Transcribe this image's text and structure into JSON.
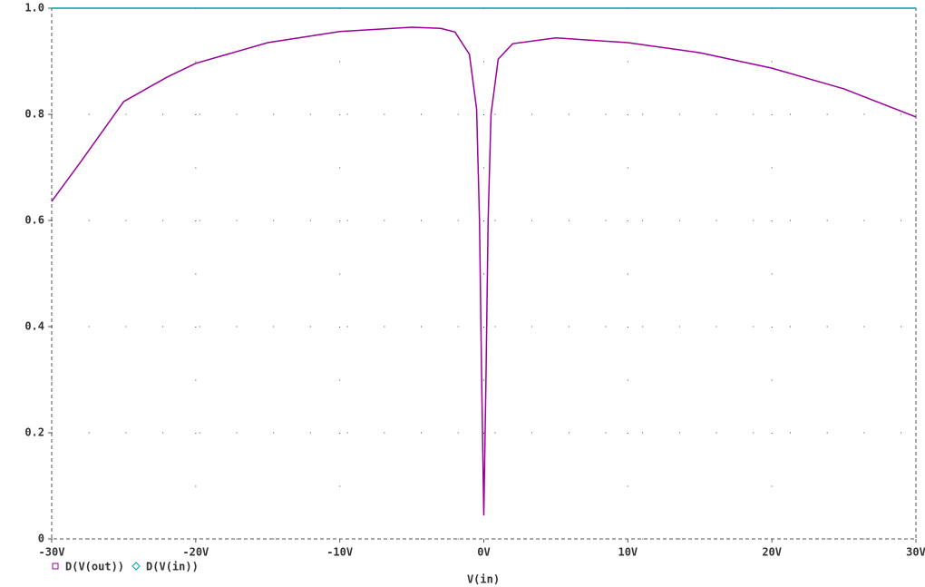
{
  "chart_data": {
    "type": "line",
    "xlabel": "V(in)",
    "series": [
      {
        "name": "D(V(out))",
        "color": "#990099",
        "marker": "square",
        "x": [
          -30,
          -28,
          -25,
          -22,
          -20,
          -15,
          -10,
          -5,
          -3,
          -2,
          -1,
          -0.5,
          -0.3,
          -0.15,
          0,
          0.15,
          0.3,
          0.5,
          1,
          2,
          5,
          10,
          15,
          20,
          25,
          30
        ],
        "values": [
          0.636,
          0.71,
          0.824,
          0.87,
          0.896,
          0.935,
          0.956,
          0.964,
          0.962,
          0.955,
          0.913,
          0.81,
          0.6,
          0.3,
          0.044,
          0.3,
          0.6,
          0.8,
          0.904,
          0.933,
          0.944,
          0.935,
          0.916,
          0.887,
          0.848,
          0.795
        ]
      },
      {
        "name": "D(V(in))",
        "color": "#00a0a0",
        "marker": "diamond",
        "x": [
          -30,
          30
        ],
        "values": [
          1,
          1
        ]
      }
    ],
    "xlim": [
      -30,
      30
    ],
    "xticks": [
      {
        "value": -30,
        "label": "-30V"
      },
      {
        "value": -20,
        "label": "-20V"
      },
      {
        "value": -10,
        "label": "-10V"
      },
      {
        "value": 0,
        "label": "0V"
      },
      {
        "value": 10,
        "label": "10V"
      },
      {
        "value": 20,
        "label": "20V"
      },
      {
        "value": 30,
        "label": "30V"
      }
    ],
    "ylim": [
      0,
      1
    ],
    "yticks": [
      0,
      0.2,
      0.4,
      0.6,
      0.8,
      {
        "value": 1,
        "label": "1.0"
      }
    ],
    "grid": true
  }
}
